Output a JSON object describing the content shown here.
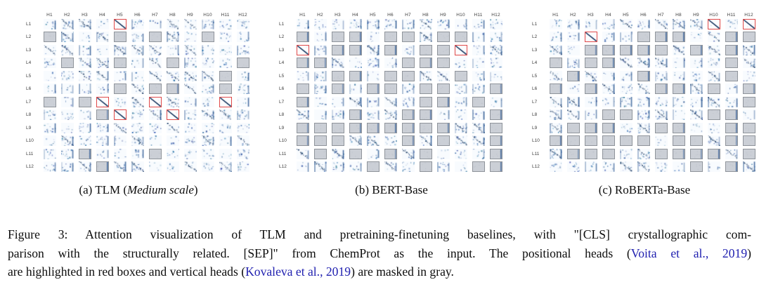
{
  "figure": {
    "col_headers": [
      "H1",
      "H2",
      "H3",
      "H4",
      "H5",
      "H6",
      "H7",
      "H8",
      "H9",
      "H10",
      "H11",
      "H12"
    ],
    "row_labels": [
      "L1",
      "L2",
      "L3",
      "L4",
      "L5",
      "L6",
      "L7",
      "L8",
      "L9",
      "L10",
      "L11",
      "L12"
    ],
    "panels": [
      {
        "id": "tlm",
        "caption_segments": [
          {
            "t": "(a) TLM ("
          },
          {
            "t": "Medium scale",
            "i": true
          },
          {
            "t": ")"
          }
        ],
        "red_cells": [
          [
            1,
            5
          ],
          [
            7,
            4
          ],
          [
            7,
            7
          ],
          [
            7,
            11
          ],
          [
            8,
            5
          ],
          [
            8,
            8
          ]
        ],
        "gray_cells": [
          [
            2,
            1
          ],
          [
            2,
            5
          ],
          [
            2,
            7
          ],
          [
            2,
            10
          ],
          [
            4,
            2
          ],
          [
            4,
            5
          ],
          [
            4,
            8
          ],
          [
            4,
            12
          ],
          [
            5,
            11
          ],
          [
            6,
            5
          ],
          [
            6,
            7
          ],
          [
            6,
            8
          ],
          [
            6,
            11
          ],
          [
            7,
            1
          ],
          [
            7,
            3
          ],
          [
            8,
            4
          ],
          [
            11,
            3
          ],
          [
            11,
            7
          ],
          [
            12,
            4
          ]
        ]
      },
      {
        "id": "bert",
        "caption_segments": [
          {
            "t": "(b) BERT-Base"
          }
        ],
        "red_cells": [
          [
            3,
            1
          ],
          [
            3,
            10
          ]
        ],
        "gray_cells": [
          [
            2,
            1
          ],
          [
            2,
            3
          ],
          [
            2,
            4
          ],
          [
            2,
            6
          ],
          [
            2,
            7
          ],
          [
            2,
            9
          ],
          [
            2,
            10
          ],
          [
            3,
            3
          ],
          [
            3,
            4
          ],
          [
            3,
            6
          ],
          [
            3,
            8
          ],
          [
            3,
            9
          ],
          [
            4,
            1
          ],
          [
            4,
            2
          ],
          [
            4,
            7
          ],
          [
            4,
            8
          ],
          [
            4,
            9
          ],
          [
            5,
            3
          ],
          [
            5,
            4
          ],
          [
            5,
            6
          ],
          [
            5,
            7
          ],
          [
            5,
            10
          ],
          [
            6,
            1
          ],
          [
            6,
            3
          ],
          [
            6,
            5
          ],
          [
            6,
            6
          ],
          [
            6,
            8
          ],
          [
            6,
            9
          ],
          [
            6,
            12
          ],
          [
            7,
            1
          ],
          [
            7,
            8
          ],
          [
            7,
            9
          ],
          [
            7,
            11
          ],
          [
            8,
            4
          ],
          [
            8,
            7
          ],
          [
            8,
            8
          ],
          [
            8,
            12
          ],
          [
            9,
            1
          ],
          [
            9,
            2
          ],
          [
            9,
            3
          ],
          [
            9,
            4
          ],
          [
            9,
            5
          ],
          [
            9,
            6
          ],
          [
            9,
            7
          ],
          [
            9,
            8
          ],
          [
            9,
            9
          ],
          [
            9,
            12
          ],
          [
            10,
            1
          ],
          [
            10,
            2
          ],
          [
            10,
            3
          ],
          [
            10,
            7
          ],
          [
            10,
            9
          ],
          [
            10,
            12
          ],
          [
            11,
            2
          ],
          [
            11,
            4
          ],
          [
            11,
            6
          ],
          [
            11,
            8
          ],
          [
            11,
            12
          ],
          [
            12,
            5
          ],
          [
            12,
            8
          ],
          [
            12,
            11
          ],
          [
            12,
            12
          ]
        ]
      },
      {
        "id": "roberta",
        "caption_segments": [
          {
            "t": "(c) RoBERTa-Base"
          }
        ],
        "red_cells": [
          [
            1,
            10
          ],
          [
            1,
            12
          ],
          [
            2,
            3
          ]
        ],
        "gray_cells": [
          [
            2,
            6
          ],
          [
            2,
            7
          ],
          [
            2,
            8
          ],
          [
            2,
            11
          ],
          [
            2,
            12
          ],
          [
            3,
            3
          ],
          [
            3,
            4
          ],
          [
            3,
            5
          ],
          [
            3,
            6
          ],
          [
            3,
            7
          ],
          [
            3,
            9
          ],
          [
            3,
            11
          ],
          [
            4,
            1
          ],
          [
            4,
            3
          ],
          [
            4,
            4
          ],
          [
            4,
            11
          ],
          [
            5,
            2
          ],
          [
            5,
            6
          ],
          [
            5,
            11
          ],
          [
            6,
            1
          ],
          [
            6,
            3
          ],
          [
            6,
            7
          ],
          [
            6,
            8
          ],
          [
            6,
            10
          ],
          [
            6,
            12
          ],
          [
            7,
            12
          ],
          [
            8,
            4
          ],
          [
            8,
            5
          ],
          [
            8,
            10
          ],
          [
            8,
            11
          ],
          [
            9,
            2
          ],
          [
            9,
            3
          ],
          [
            9,
            4
          ],
          [
            9,
            7
          ],
          [
            9,
            8
          ],
          [
            9,
            11
          ],
          [
            9,
            12
          ],
          [
            10,
            1
          ],
          [
            10,
            2
          ],
          [
            10,
            3
          ],
          [
            10,
            4
          ],
          [
            10,
            5
          ],
          [
            10,
            6
          ],
          [
            10,
            8
          ],
          [
            10,
            9
          ],
          [
            10,
            11
          ],
          [
            10,
            12
          ],
          [
            11,
            2
          ],
          [
            11,
            3
          ],
          [
            11,
            4
          ],
          [
            11,
            7
          ],
          [
            11,
            8
          ],
          [
            11,
            9
          ],
          [
            11,
            10
          ],
          [
            11,
            12
          ],
          [
            12,
            9
          ],
          [
            12,
            11
          ]
        ]
      }
    ],
    "caption": {
      "lines": [
        [
          {
            "t": "Figure 3: Attention visualization of TLM and pretraining-finetuning baselines, with \"[CLS] crystallographic com-"
          }
        ],
        [
          {
            "t": "parison with the structurally related. [SEP]\" from ChemProt as the input. The positional heads ("
          },
          {
            "t": "Voita et al., 2019",
            "cite": true
          },
          {
            "t": ")"
          }
        ],
        [
          {
            "t": "are highlighted in red boxes and vertical heads ("
          },
          {
            "t": "Kovaleva et al., 2019",
            "cite": true
          },
          {
            "t": ") are masked in gray."
          }
        ]
      ]
    },
    "colors": {
      "cite": "#2121b0",
      "red_box": "#e04848",
      "gray_fill": "#cbcfd6",
      "gray_border": "#8f949b",
      "attention_ink": "#2c5c98",
      "diag_ink": "#16355e"
    }
  }
}
